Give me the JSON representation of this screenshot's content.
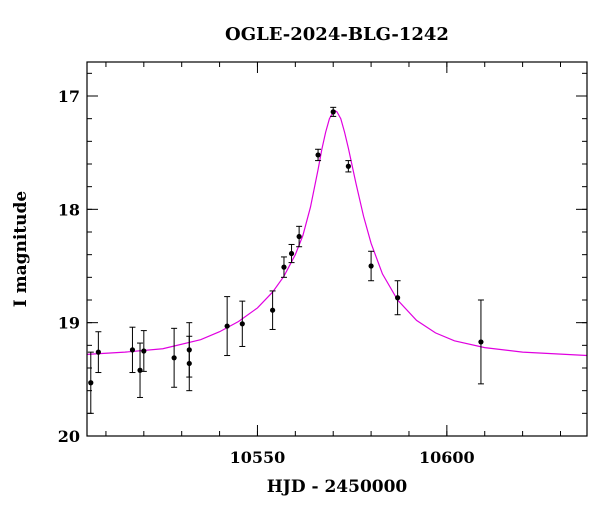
{
  "chart_data": {
    "type": "scatter",
    "title": "OGLE-2024-BLG-1242",
    "xlabel": "HJD - 2450000",
    "ylabel": "I magnitude",
    "xlim": [
      10505,
      10637
    ],
    "ylim": [
      20,
      16.7
    ],
    "y_inverted": true,
    "x_major_ticks": [
      10550,
      10600
    ],
    "x_minor_step": 10,
    "y_major_ticks": [
      17,
      18,
      19,
      20
    ],
    "y_minor_step": 0.2,
    "grid": false,
    "legend": "none",
    "colors": {
      "points": "#000000",
      "model": "#e000e0",
      "axes": "#000000"
    },
    "series": [
      {
        "kind": "points",
        "x": [
          10506,
          10508,
          10517,
          10519,
          10520,
          10528,
          10532,
          10532,
          10542,
          10546,
          10554,
          10557,
          10559,
          10561,
          10566,
          10570,
          10574,
          10580,
          10587,
          10609
        ],
        "y": [
          19.53,
          19.26,
          19.24,
          19.42,
          19.25,
          19.31,
          19.36,
          19.24,
          19.03,
          19.01,
          18.89,
          18.51,
          18.39,
          18.24,
          17.52,
          17.14,
          17.62,
          18.5,
          18.78,
          19.17
        ],
        "err": [
          0.27,
          0.18,
          0.2,
          0.24,
          0.18,
          0.26,
          0.24,
          0.24,
          0.26,
          0.2,
          0.17,
          0.09,
          0.08,
          0.09,
          0.05,
          0.04,
          0.05,
          0.13,
          0.15,
          0.37
        ]
      },
      {
        "kind": "model",
        "x": [
          10505,
          10515,
          10525,
          10535,
          10540,
          10545,
          10550,
          10554,
          10557,
          10560,
          10562,
          10564,
          10566,
          10567,
          10568,
          10569,
          10570,
          10570.5,
          10571,
          10572,
          10573,
          10574,
          10576,
          10578,
          10580,
          10583,
          10587,
          10592,
          10597,
          10602,
          10610,
          10620,
          10637
        ],
        "y": [
          19.28,
          19.26,
          19.23,
          19.15,
          19.08,
          18.99,
          18.87,
          18.73,
          18.59,
          18.4,
          18.23,
          17.98,
          17.65,
          17.47,
          17.32,
          17.2,
          17.14,
          17.13,
          17.14,
          17.2,
          17.32,
          17.46,
          17.77,
          18.06,
          18.3,
          18.57,
          18.8,
          18.98,
          19.09,
          19.16,
          19.22,
          19.26,
          19.29
        ]
      }
    ]
  }
}
